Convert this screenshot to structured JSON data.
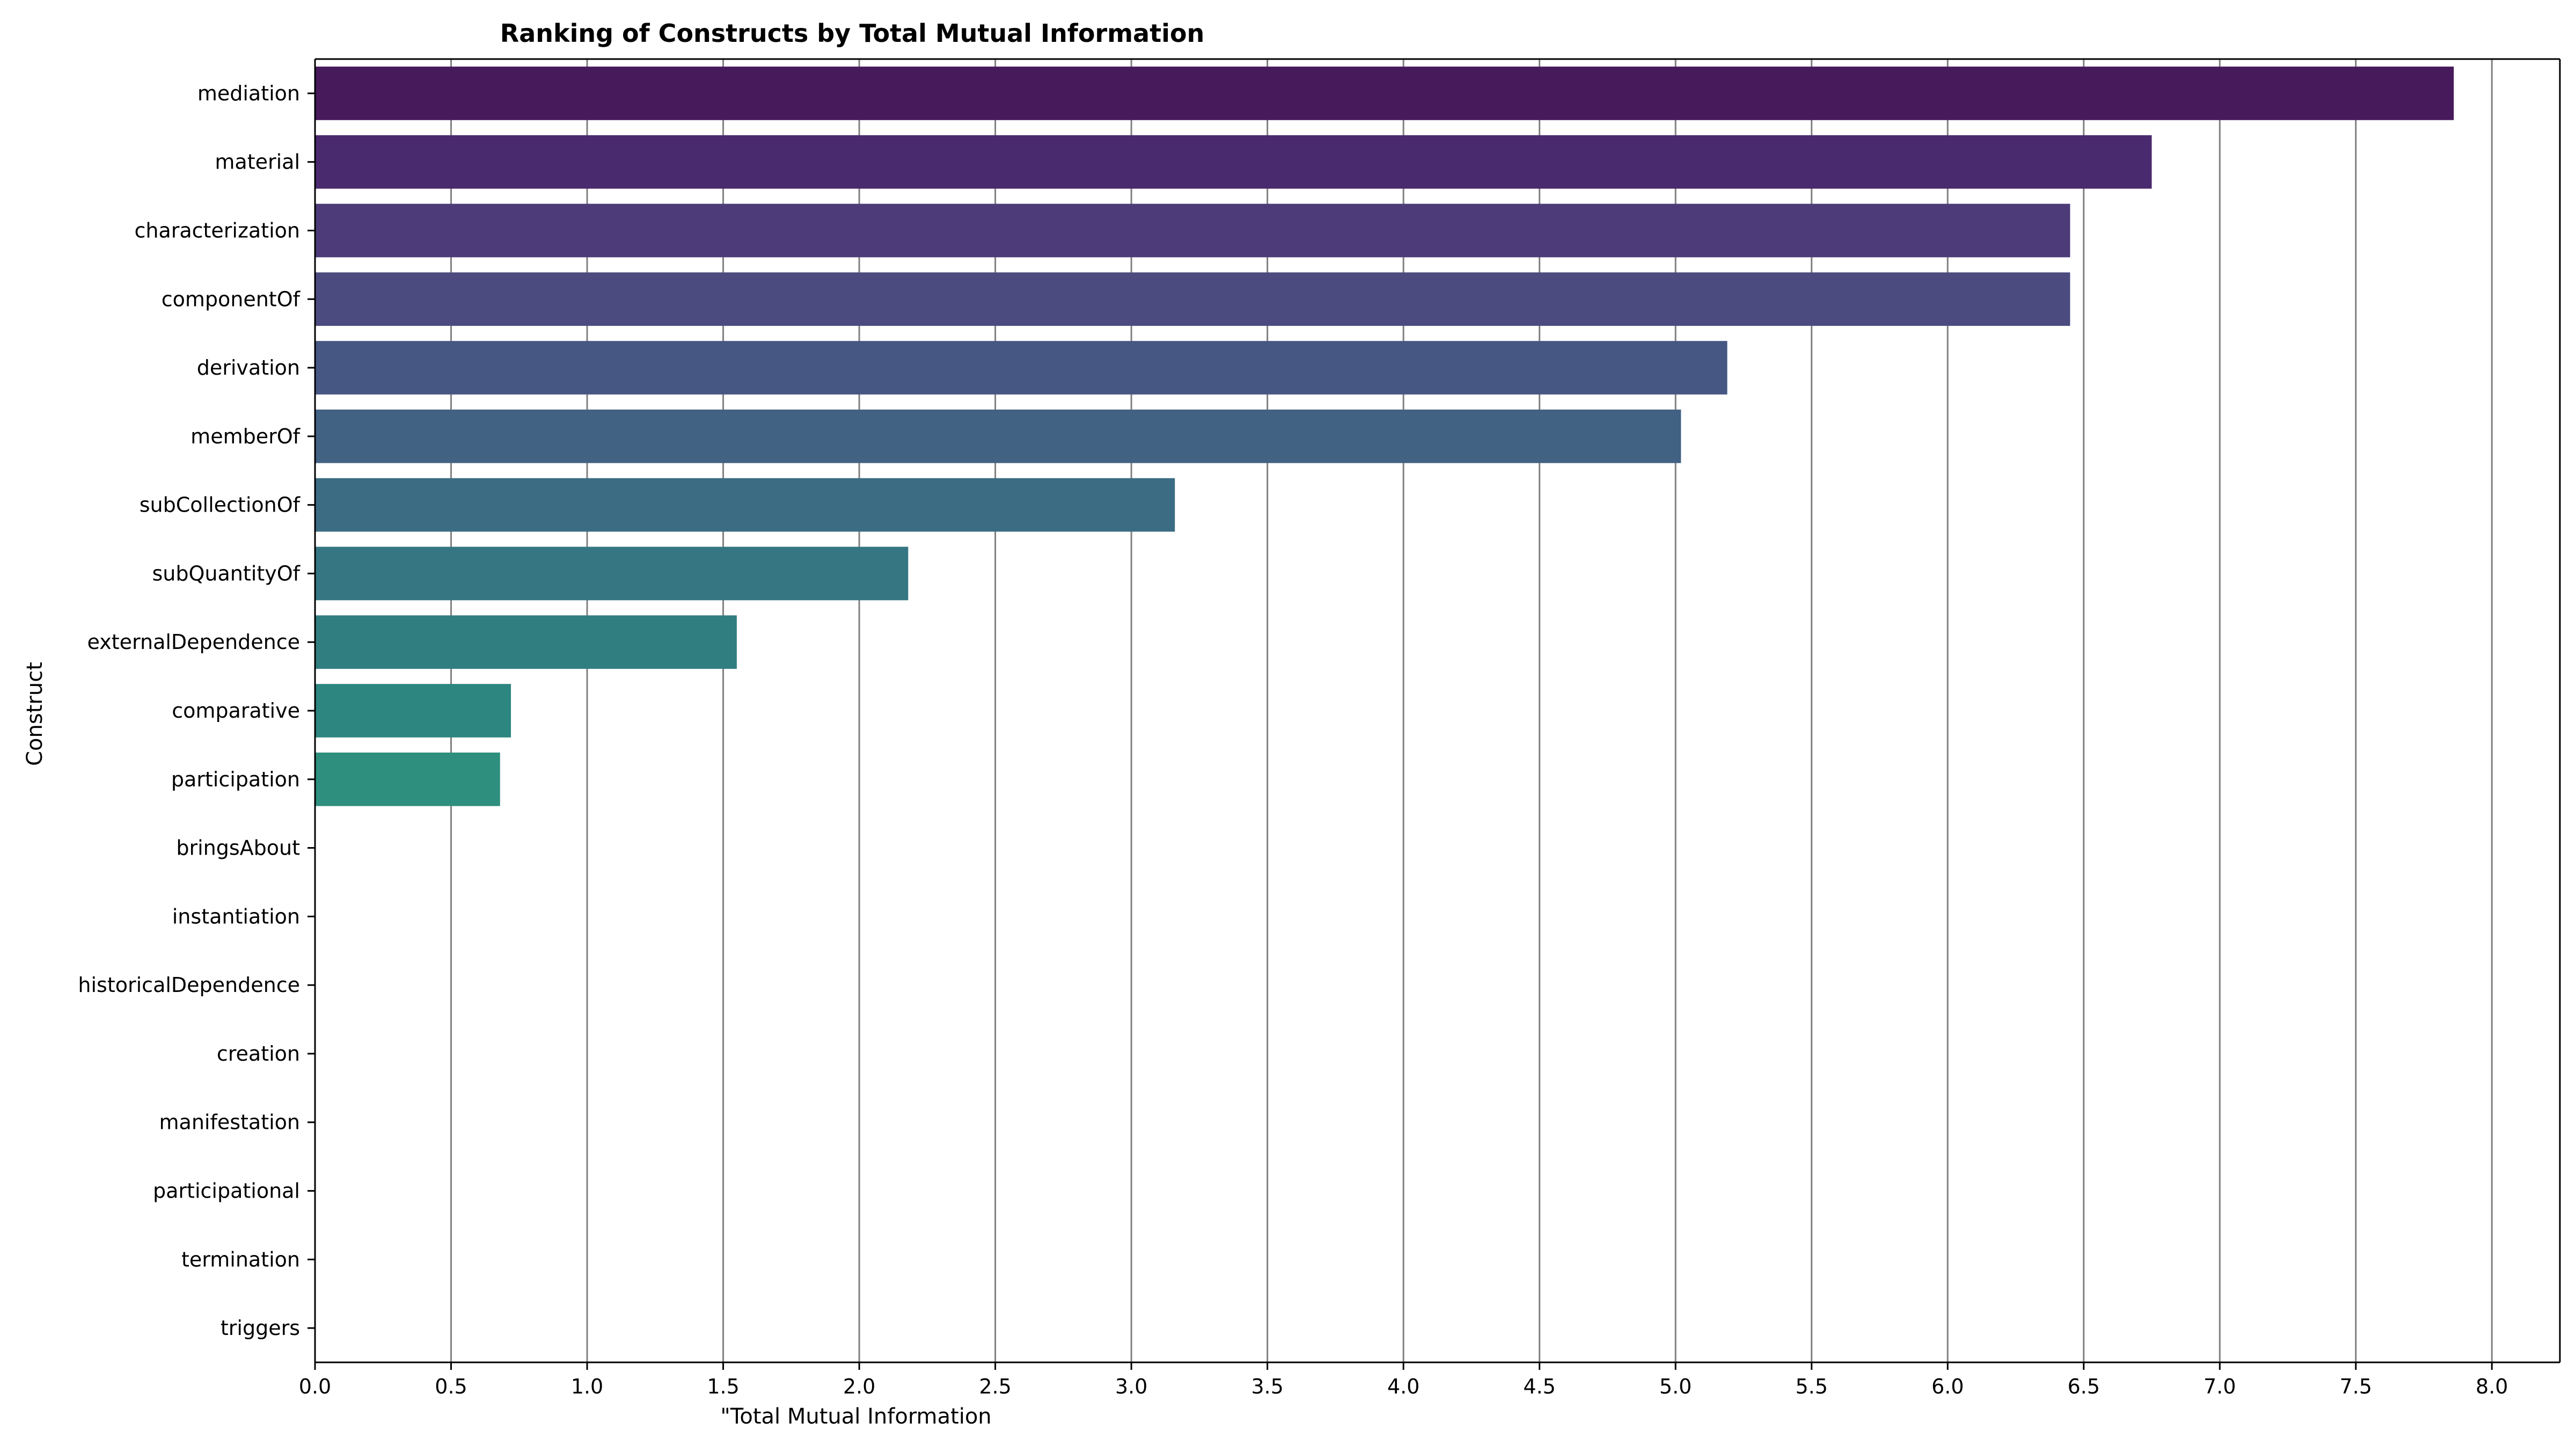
{
  "chart_data": {
    "type": "bar",
    "orientation": "horizontal",
    "title": "Ranking of Constructs by Total Mutual Information",
    "xlabel": "\"Total Mutual Information",
    "ylabel": "Construct",
    "xlim": [
      0,
      8.25
    ],
    "xticks": [
      "0.0",
      "0.5",
      "1.0",
      "1.5",
      "2.0",
      "2.5",
      "3.0",
      "3.5",
      "4.0",
      "4.5",
      "5.0",
      "5.5",
      "6.0",
      "6.5",
      "7.0",
      "7.5",
      "8.0"
    ],
    "grid": "vertical",
    "categories": [
      "mediation",
      "material",
      "characterization",
      "componentOf",
      "derivation",
      "memberOf",
      "subCollectionOf",
      "subQuantityOf",
      "externalDependence",
      "comparative",
      "participation",
      "bringsAbout",
      "instantiation",
      "historicalDependence",
      "creation",
      "manifestation",
      "participational",
      "termination",
      "triggers"
    ],
    "values": [
      7.86,
      6.75,
      6.45,
      6.45,
      5.19,
      5.02,
      3.16,
      2.18,
      1.55,
      0.72,
      0.68,
      0,
      0,
      0,
      0,
      0,
      0,
      0,
      0
    ],
    "colors": [
      "#471a5c",
      "#4a2a6e",
      "#4c3b78",
      "#4b4b80",
      "#465783",
      "#426284",
      "#3b6c83",
      "#367682",
      "#317e80",
      "#2d867f",
      "#2e8f7e",
      "#2f977c",
      "#31a07a",
      "#38a877",
      "#46b073",
      "#5ab96c",
      "#73c163",
      "#8fc957",
      "#a9d04a"
    ]
  }
}
